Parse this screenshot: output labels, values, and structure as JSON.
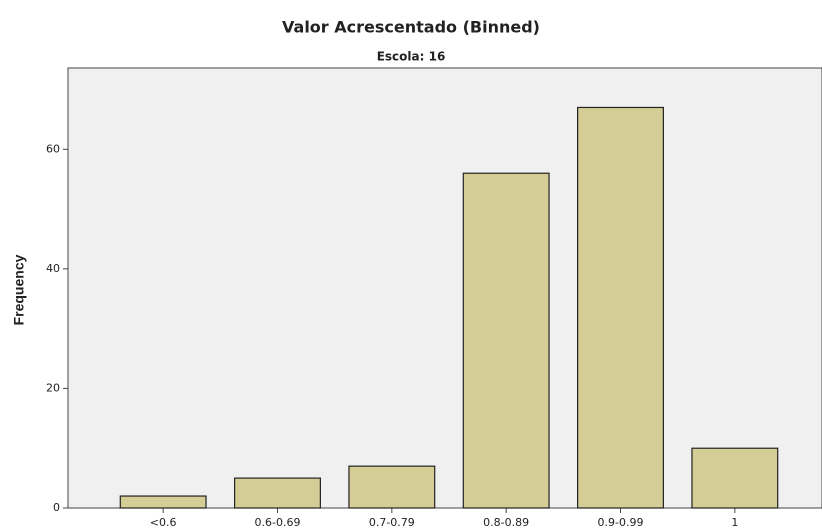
{
  "chart_data": {
    "type": "bar",
    "title": "Valor Acrescentado (Binned)",
    "subtitle": "Escola: 16",
    "y_label": "Frequency",
    "categories": [
      "<0.6",
      "0.6-0.69",
      "0.7-0.79",
      "0.8-0.89",
      "0.9-0.99",
      "1"
    ],
    "values": [
      2,
      5,
      7,
      56,
      67,
      10
    ],
    "color": "#d4cd95",
    "ylim": [
      0,
      73.6
    ],
    "yticks": [
      0,
      20,
      40,
      60
    ],
    "grid": false
  }
}
